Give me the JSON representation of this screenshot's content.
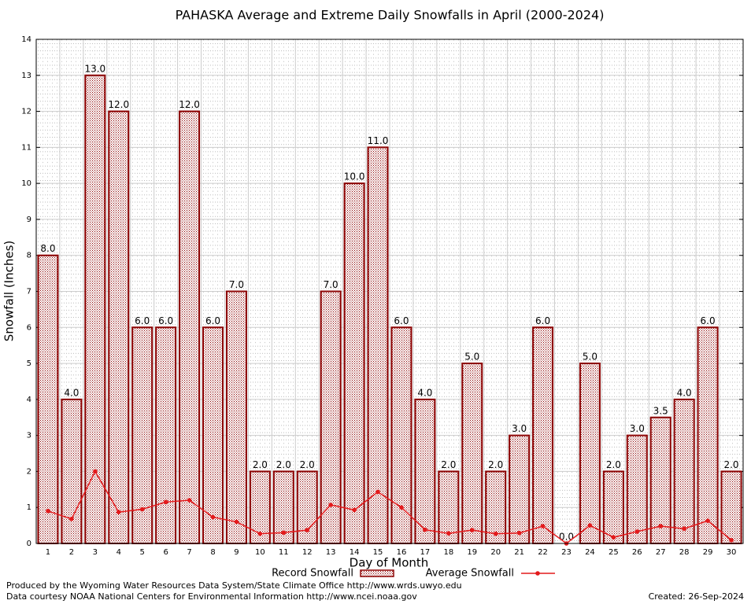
{
  "chart_data": {
    "type": "bar",
    "title": "PAHASKA Average and Extreme Daily Snowfalls in April (2000-2024)",
    "x_label": "Day of Month",
    "y_label": "Snowfall (Inches)",
    "categories": [
      "1",
      "2",
      "3",
      "4",
      "5",
      "6",
      "7",
      "8",
      "9",
      "10",
      "11",
      "12",
      "13",
      "14",
      "15",
      "16",
      "17",
      "18",
      "19",
      "20",
      "21",
      "22",
      "23",
      "24",
      "25",
      "26",
      "27",
      "28",
      "29",
      "30"
    ],
    "series": [
      {
        "name": "Record Snowfall",
        "type": "bar",
        "color": "#8b0000",
        "values": [
          8,
          4,
          13,
          12,
          6,
          6,
          12,
          6,
          7,
          2,
          2,
          2,
          7,
          10,
          11,
          6,
          4,
          2,
          5,
          2,
          3,
          6,
          0,
          5,
          2,
          3,
          3.5,
          4,
          6,
          2
        ],
        "value_labels": [
          "8.0",
          "4.0",
          "13.0",
          "12.0",
          "6.0",
          "6.0",
          "12.0",
          "6.0",
          "7.0",
          "2.0",
          "2.0",
          "2.0",
          "7.0",
          "10.0",
          "11.0",
          "6.0",
          "4.0",
          "2.0",
          "5.0",
          "2.0",
          "3.0",
          "6.0",
          "0.0",
          "5.0",
          "2.0",
          "3.0",
          "3.5",
          "4.0",
          "6.0",
          "2.0"
        ]
      },
      {
        "name": "Average Snowfall",
        "type": "line",
        "color": "#e31a1c",
        "values": [
          0.9,
          0.68,
          2.0,
          0.87,
          0.95,
          1.15,
          1.2,
          0.73,
          0.6,
          0.27,
          0.3,
          0.37,
          1.07,
          0.93,
          1.43,
          1.0,
          0.38,
          0.28,
          0.37,
          0.27,
          0.29,
          0.48,
          0,
          0.5,
          0.17,
          0.33,
          0.48,
          0.41,
          0.63,
          0.09
        ]
      }
    ],
    "ylim": [
      0,
      14
    ],
    "yticks": [
      0,
      1,
      2,
      3,
      4,
      5,
      6,
      7,
      8,
      9,
      10,
      11,
      12,
      13,
      14
    ],
    "grid": true,
    "footer": {
      "produced": "Produced by the Wyoming Water Resources Data System/State Climate Office http://www.wrds.uwyo.edu",
      "courtesy": "Data courtesy NOAA National Centers for Environmental Information http://www.ncei.noaa.gov",
      "created": "Created:  26-Sep-2024"
    }
  }
}
